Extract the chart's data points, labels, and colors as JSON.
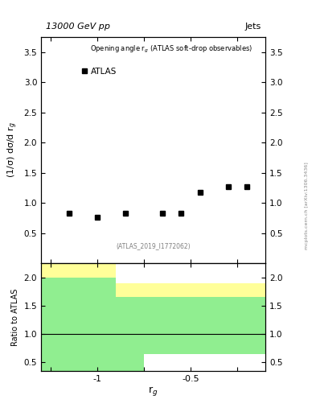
{
  "title_left": "13000 GeV pp",
  "title_right": "Jets",
  "main_title": "Opening angle r$_g$ (ATLAS soft-drop observables)",
  "legend_label": "ATLAS",
  "watermark": "(ATLAS_2019_I1772062)",
  "arxiv_label": "mcplots.cern.ch [arXiv:1306.3436]",
  "ylabel_main": "(1/σ) dσ/d r$_g$",
  "ylabel_ratio": "Ratio to ATLAS",
  "xlabel": "r$_g$",
  "data_x": [
    -1.15,
    -1.0,
    -0.85,
    -0.65,
    -0.55,
    -0.45,
    -0.3,
    -0.2
  ],
  "data_y": [
    0.83,
    0.76,
    0.83,
    0.83,
    0.83,
    1.18,
    1.27,
    1.27
  ],
  "ylim_main": [
    0,
    3.75
  ],
  "ylim_ratio": [
    0.35,
    2.25
  ],
  "yticks_main": [
    0.5,
    1.0,
    1.5,
    2.0,
    2.5,
    3.0,
    3.5
  ],
  "yticks_ratio": [
    0.5,
    1.0,
    1.5,
    2.0
  ],
  "xlim": [
    -1.3,
    -0.1
  ],
  "xticks": [
    -1.25,
    -1.0,
    -0.75,
    -0.5,
    -0.25
  ],
  "xtick_labels_ratio": [
    "",
    "-1",
    "",
    "-0.5",
    ""
  ],
  "bin_edges": [
    -1.3,
    -1.2,
    -0.9,
    -0.75,
    -0.6,
    -0.5,
    -0.35,
    -0.2,
    -0.1
  ],
  "ratio_yellow_low": [
    0.35,
    0.35,
    0.65,
    0.65,
    0.65,
    0.65,
    0.65,
    0.65
  ],
  "ratio_yellow_high": [
    2.25,
    2.25,
    1.9,
    1.9,
    1.9,
    1.9,
    1.9,
    1.9
  ],
  "ratio_green_low": [
    0.35,
    0.35,
    0.35,
    0.65,
    0.65,
    0.65,
    0.65,
    0.65
  ],
  "ratio_green_high": [
    2.0,
    2.0,
    1.65,
    1.65,
    1.65,
    1.65,
    1.65,
    1.65
  ],
  "color_green": "#90ee90",
  "color_yellow": "#ffff99",
  "marker_color": "black",
  "marker_size": 4
}
